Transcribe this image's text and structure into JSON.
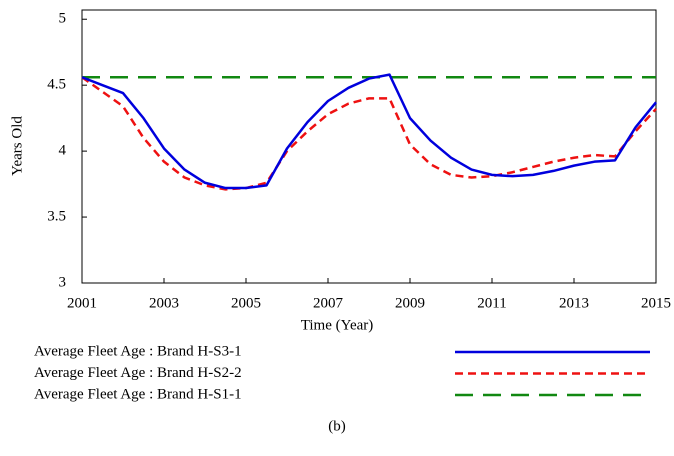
{
  "chart_data": {
    "type": "line",
    "caption": "(b)",
    "xlabel": "Time (Year)",
    "ylabel": "Years Old",
    "x": [
      2001,
      2001.5,
      2002,
      2002.5,
      2003,
      2003.5,
      2004,
      2004.5,
      2005,
      2005.5,
      2006,
      2006.5,
      2007,
      2007.5,
      2008,
      2008.5,
      2009,
      2009.5,
      2010,
      2010.5,
      2011,
      2011.5,
      2012,
      2012.5,
      2013,
      2013.5,
      2014,
      2014.5,
      2015
    ],
    "xlim": [
      2001,
      2015
    ],
    "xticks": [
      2001,
      2003,
      2005,
      2007,
      2009,
      2011,
      2013,
      2015
    ],
    "ylim": [
      3,
      5.07
    ],
    "yticks": [
      3,
      3.5,
      4,
      4.5,
      5
    ],
    "series": [
      {
        "name": "Average Fleet Age : Brand H-S3-1",
        "color": "#0000dd",
        "dash": "none",
        "values": [
          4.56,
          4.5,
          4.44,
          4.25,
          4.02,
          3.86,
          3.76,
          3.72,
          3.72,
          3.74,
          4.02,
          4.22,
          4.38,
          4.48,
          4.55,
          4.58,
          4.25,
          4.08,
          3.95,
          3.86,
          3.82,
          3.81,
          3.82,
          3.85,
          3.89,
          3.92,
          3.93,
          4.18,
          4.37
        ]
      },
      {
        "name": "Average Fleet Age : Brand H-S2-2",
        "color": "#ee1111",
        "dash": "8,5",
        "values": [
          4.56,
          4.45,
          4.34,
          4.1,
          3.92,
          3.8,
          3.74,
          3.71,
          3.72,
          3.76,
          4.0,
          4.15,
          4.28,
          4.36,
          4.4,
          4.4,
          4.05,
          3.9,
          3.82,
          3.8,
          3.81,
          3.84,
          3.88,
          3.92,
          3.95,
          3.97,
          3.96,
          4.15,
          4.32
        ]
      },
      {
        "name": "Average Fleet Age : Brand H-S1-1",
        "color": "#118811",
        "dash": "18,10",
        "values": [
          4.56,
          4.56,
          4.56,
          4.56,
          4.56,
          4.56,
          4.56,
          4.56,
          4.56,
          4.56,
          4.56,
          4.56,
          4.56,
          4.56,
          4.56,
          4.56,
          4.56,
          4.56,
          4.56,
          4.56,
          4.56,
          4.56,
          4.56,
          4.56,
          4.56,
          4.56,
          4.56,
          4.56,
          4.56
        ]
      }
    ]
  }
}
